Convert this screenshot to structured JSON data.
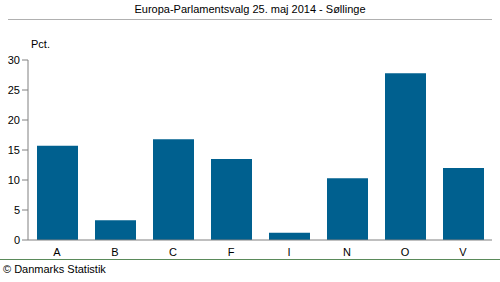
{
  "chart_data": {
    "type": "bar",
    "title": "Europa-Parlamentsvalg 25. maj 2014 - Søllinge",
    "y_label": "Pct.",
    "annotations": [
      "© Danmarks Statistik"
    ],
    "categories": [
      "A",
      "B",
      "C",
      "F",
      "I",
      "N",
      "O",
      "V"
    ],
    "values": [
      15.7,
      3.3,
      16.8,
      13.5,
      1.2,
      10.3,
      27.8,
      12.0
    ],
    "color": "#00608f",
    "ylim": [
      0,
      30
    ],
    "yticks": [
      0,
      5,
      10,
      15,
      20,
      25,
      30
    ],
    "grid": false
  }
}
